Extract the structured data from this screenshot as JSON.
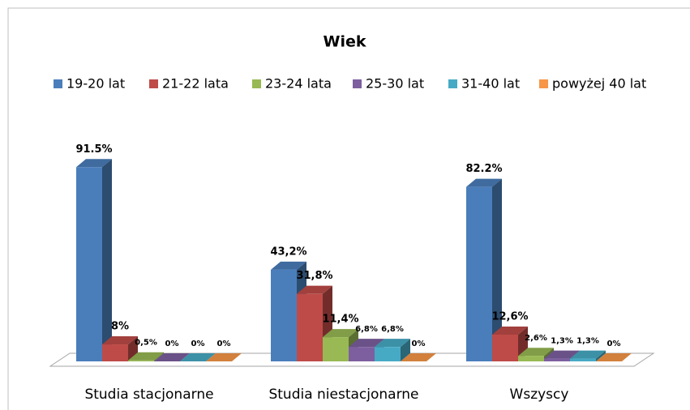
{
  "chart_data": {
    "type": "bar3d",
    "title": "Wiek",
    "categories": [
      "Studia stacjonarne",
      "Studia niestacjonarne",
      "Wszyscy"
    ],
    "series": [
      {
        "name": "19-20 lat",
        "color": "#4A7EBB",
        "values": [
          91.5,
          43.2,
          82.2
        ],
        "value_labels": [
          "91.5%",
          "43,2%",
          "82.2%"
        ]
      },
      {
        "name": "21-22 lata",
        "color": "#BE4B48",
        "values": [
          8,
          31.8,
          12.6
        ],
        "value_labels": [
          "8%",
          "31,8%",
          "12,6%"
        ]
      },
      {
        "name": "23-24 lata",
        "color": "#98B954",
        "values": [
          0.5,
          11.4,
          2.6
        ],
        "value_labels": [
          "0,5%",
          "11,4%",
          "2,6%"
        ]
      },
      {
        "name": "25-30 lat",
        "color": "#7D5FA0",
        "values": [
          0,
          6.8,
          1.3
        ],
        "value_labels": [
          "0%",
          "6,8%",
          "1,3%"
        ]
      },
      {
        "name": "31-40 lat",
        "color": "#46AAC5",
        "values": [
          0,
          6.8,
          1.3
        ],
        "value_labels": [
          "0%",
          "6,8%",
          "1,3%"
        ]
      },
      {
        "name": "powyżej 40 lat",
        "color": "#F79646",
        "values": [
          0,
          0,
          0
        ],
        "value_labels": [
          "0%",
          "0%",
          "0%"
        ]
      }
    ],
    "legend": "top"
  }
}
